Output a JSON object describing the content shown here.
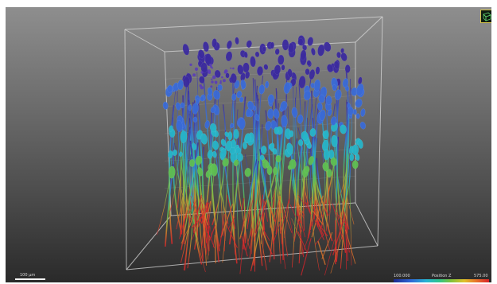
{
  "scale_bar": {
    "label": "100 µm"
  },
  "colorbar": {
    "min_label": "100.000",
    "title": "Position Z",
    "max_label": "575.00"
  },
  "colors": {
    "background_top": "#8e8e8e",
    "background_bottom": "#2a2a2a",
    "bounding_box": "#d8d8d8",
    "gradient_top": "#3b2a9e",
    "gradient_mid": "#26b4c8",
    "gradient_low": "#6bbd3a",
    "gradient_bottom": "#d9232a"
  },
  "icons": {
    "nav_cube": "orientation-cube-icon"
  }
}
